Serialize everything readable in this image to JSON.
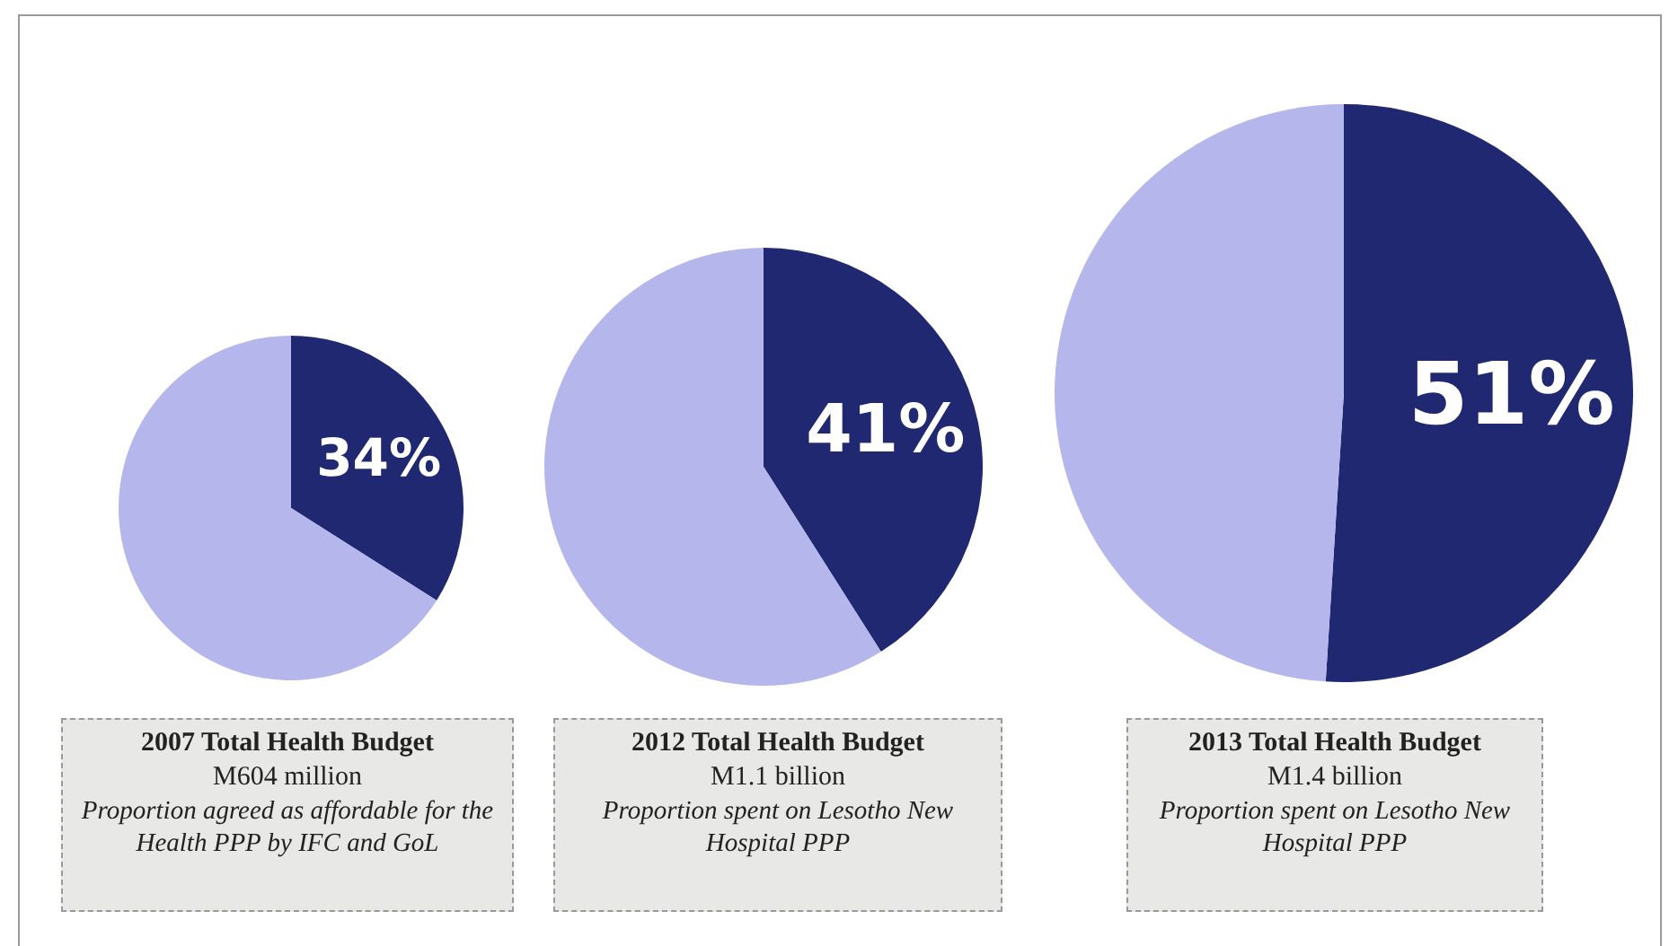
{
  "chart_data": [
    {
      "type": "pie",
      "title": "2007 Total Health Budget",
      "subtitle": "M604 million",
      "annotations": [
        "Proportion agreed as affordable for the Health PPP by IFC and GoL"
      ],
      "categories": [
        null,
        null
      ],
      "values": [
        34,
        66
      ],
      "colors": [
        "#1f2870",
        "#b4b6ec"
      ],
      "value_labels": [
        "34%",
        null
      ],
      "legend": false
    },
    {
      "type": "pie",
      "title": "2012 Total Health Budget",
      "subtitle": "M1.1 billion",
      "annotations": [
        "Proportion spent on Lesotho New Hospital PPP"
      ],
      "categories": [
        null,
        null
      ],
      "values": [
        41,
        59
      ],
      "colors": [
        "#1f2870",
        "#b4b6ec"
      ],
      "value_labels": [
        "41%",
        null
      ],
      "legend": false
    },
    {
      "type": "pie",
      "title": "2013 Total Health Budget",
      "subtitle": "M1.4 billion",
      "annotations": [
        "Proportion spent on Lesotho New Hospital PPP"
      ],
      "categories": [
        null,
        null
      ],
      "values": [
        51,
        49
      ],
      "colors": [
        "#1f2870",
        "#b4b6ec"
      ],
      "value_labels": [
        "51%",
        null
      ],
      "legend": false
    }
  ]
}
